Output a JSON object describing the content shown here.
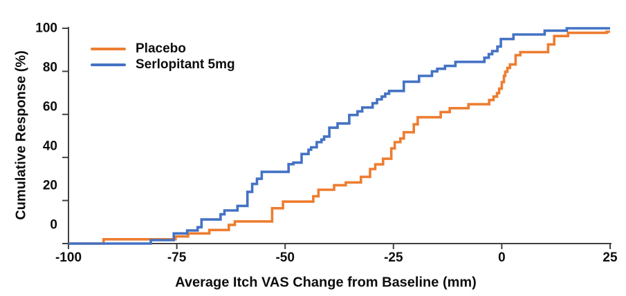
{
  "figure": {
    "xlabel": "Average Itch VAS Change from Baseline (mm)",
    "ylabel": "Cumulative Response (%)"
  },
  "legend": {
    "items": [
      {
        "label": "Placebo",
        "color": "#ED7D31"
      },
      {
        "label": "Serlopitant 5mg",
        "color": "#4472C4"
      }
    ]
  },
  "chart_data": {
    "type": "line",
    "subtype": "cumulative-response-step-curve",
    "title": "",
    "xlabel": "Average Itch VAS Change from Baseline (mm)",
    "ylabel": "Cumulative Response (%)",
    "xlim": [
      -100,
      25
    ],
    "ylim": [
      0,
      100
    ],
    "x_ticks": [
      -100,
      -75,
      -50,
      -25,
      0,
      25
    ],
    "y_ticks": [
      0,
      20,
      40,
      60,
      80,
      100
    ],
    "grid": false,
    "legend_position": "top-left-inside",
    "axis_color": "#404040",
    "text_color": "#0d0d0d",
    "series": [
      {
        "name": "Placebo",
        "color": "#ED7D31",
        "start_x": -100,
        "start_y": 0,
        "end_x": 25,
        "steps": [
          [
            -91.9,
            2.0
          ],
          [
            -75.3,
            3.3
          ],
          [
            -72.4,
            4.7
          ],
          [
            -67.5,
            6.3
          ],
          [
            -63.0,
            8.7
          ],
          [
            -61.6,
            10.3
          ],
          [
            -53.0,
            16.4
          ],
          [
            -50.5,
            19.5
          ],
          [
            -43.5,
            22.0
          ],
          [
            -42.3,
            25.0
          ],
          [
            -38.7,
            27.1
          ],
          [
            -36.0,
            28.4
          ],
          [
            -32.5,
            31.0
          ],
          [
            -30.4,
            34.6
          ],
          [
            -29.2,
            36.8
          ],
          [
            -27.4,
            39.4
          ],
          [
            -25.5,
            44.2
          ],
          [
            -24.7,
            47.1
          ],
          [
            -23.4,
            48.8
          ],
          [
            -22.6,
            51.7
          ],
          [
            -20.3,
            55.4
          ],
          [
            -19.4,
            58.7
          ],
          [
            -14.1,
            61.1
          ],
          [
            -12.0,
            62.9
          ],
          [
            -7.7,
            64.7
          ],
          [
            -2.9,
            66.7
          ],
          [
            -1.9,
            68.3
          ],
          [
            -1.1,
            69.9
          ],
          [
            -0.6,
            72.0
          ],
          [
            0.0,
            75.0
          ],
          [
            0.5,
            77.9
          ],
          [
            0.8,
            79.8
          ],
          [
            1.3,
            81.6
          ],
          [
            1.9,
            83.2
          ],
          [
            3.2,
            87.5
          ],
          [
            4.3,
            88.9
          ],
          [
            10.7,
            92.5
          ],
          [
            12.1,
            96.4
          ],
          [
            15.3,
            97.9
          ],
          [
            24.2,
            98.4
          ]
        ]
      },
      {
        "name": "Serlopitant 5mg",
        "color": "#4472C4",
        "start_x": -100,
        "start_y": 0,
        "end_x": 25,
        "steps": [
          [
            -81.0,
            1.6
          ],
          [
            -75.7,
            4.7
          ],
          [
            -72.6,
            6.1
          ],
          [
            -70.2,
            7.6
          ],
          [
            -69.3,
            11.2
          ],
          [
            -64.9,
            13.6
          ],
          [
            -64.0,
            15.4
          ],
          [
            -61.0,
            17.5
          ],
          [
            -58.7,
            24.0
          ],
          [
            -57.6,
            27.7
          ],
          [
            -56.5,
            30.1
          ],
          [
            -55.4,
            33.3
          ],
          [
            -49.2,
            36.9
          ],
          [
            -48.1,
            37.6
          ],
          [
            -46.2,
            41.6
          ],
          [
            -44.6,
            43.6
          ],
          [
            -44.0,
            44.7
          ],
          [
            -42.7,
            47.1
          ],
          [
            -41.6,
            48.3
          ],
          [
            -41.0,
            49.7
          ],
          [
            -39.8,
            53.8
          ],
          [
            -37.9,
            55.8
          ],
          [
            -35.2,
            59.7
          ],
          [
            -33.3,
            61.4
          ],
          [
            -32.2,
            63.2
          ],
          [
            -29.8,
            65.2
          ],
          [
            -28.8,
            67.0
          ],
          [
            -27.7,
            68.3
          ],
          [
            -26.9,
            69.6
          ],
          [
            -26.0,
            70.9
          ],
          [
            -22.6,
            75.2
          ],
          [
            -19.1,
            77.9
          ],
          [
            -16.1,
            80.0
          ],
          [
            -14.9,
            81.2
          ],
          [
            -13.1,
            82.5
          ],
          [
            -10.7,
            84.4
          ],
          [
            -4.0,
            86.3
          ],
          [
            -3.0,
            88.0
          ],
          [
            -2.2,
            89.4
          ],
          [
            -1.0,
            91.5
          ],
          [
            -0.2,
            95.0
          ],
          [
            2.7,
            97.1
          ],
          [
            9.9,
            98.9
          ],
          [
            15.0,
            100.0
          ]
        ]
      }
    ]
  }
}
